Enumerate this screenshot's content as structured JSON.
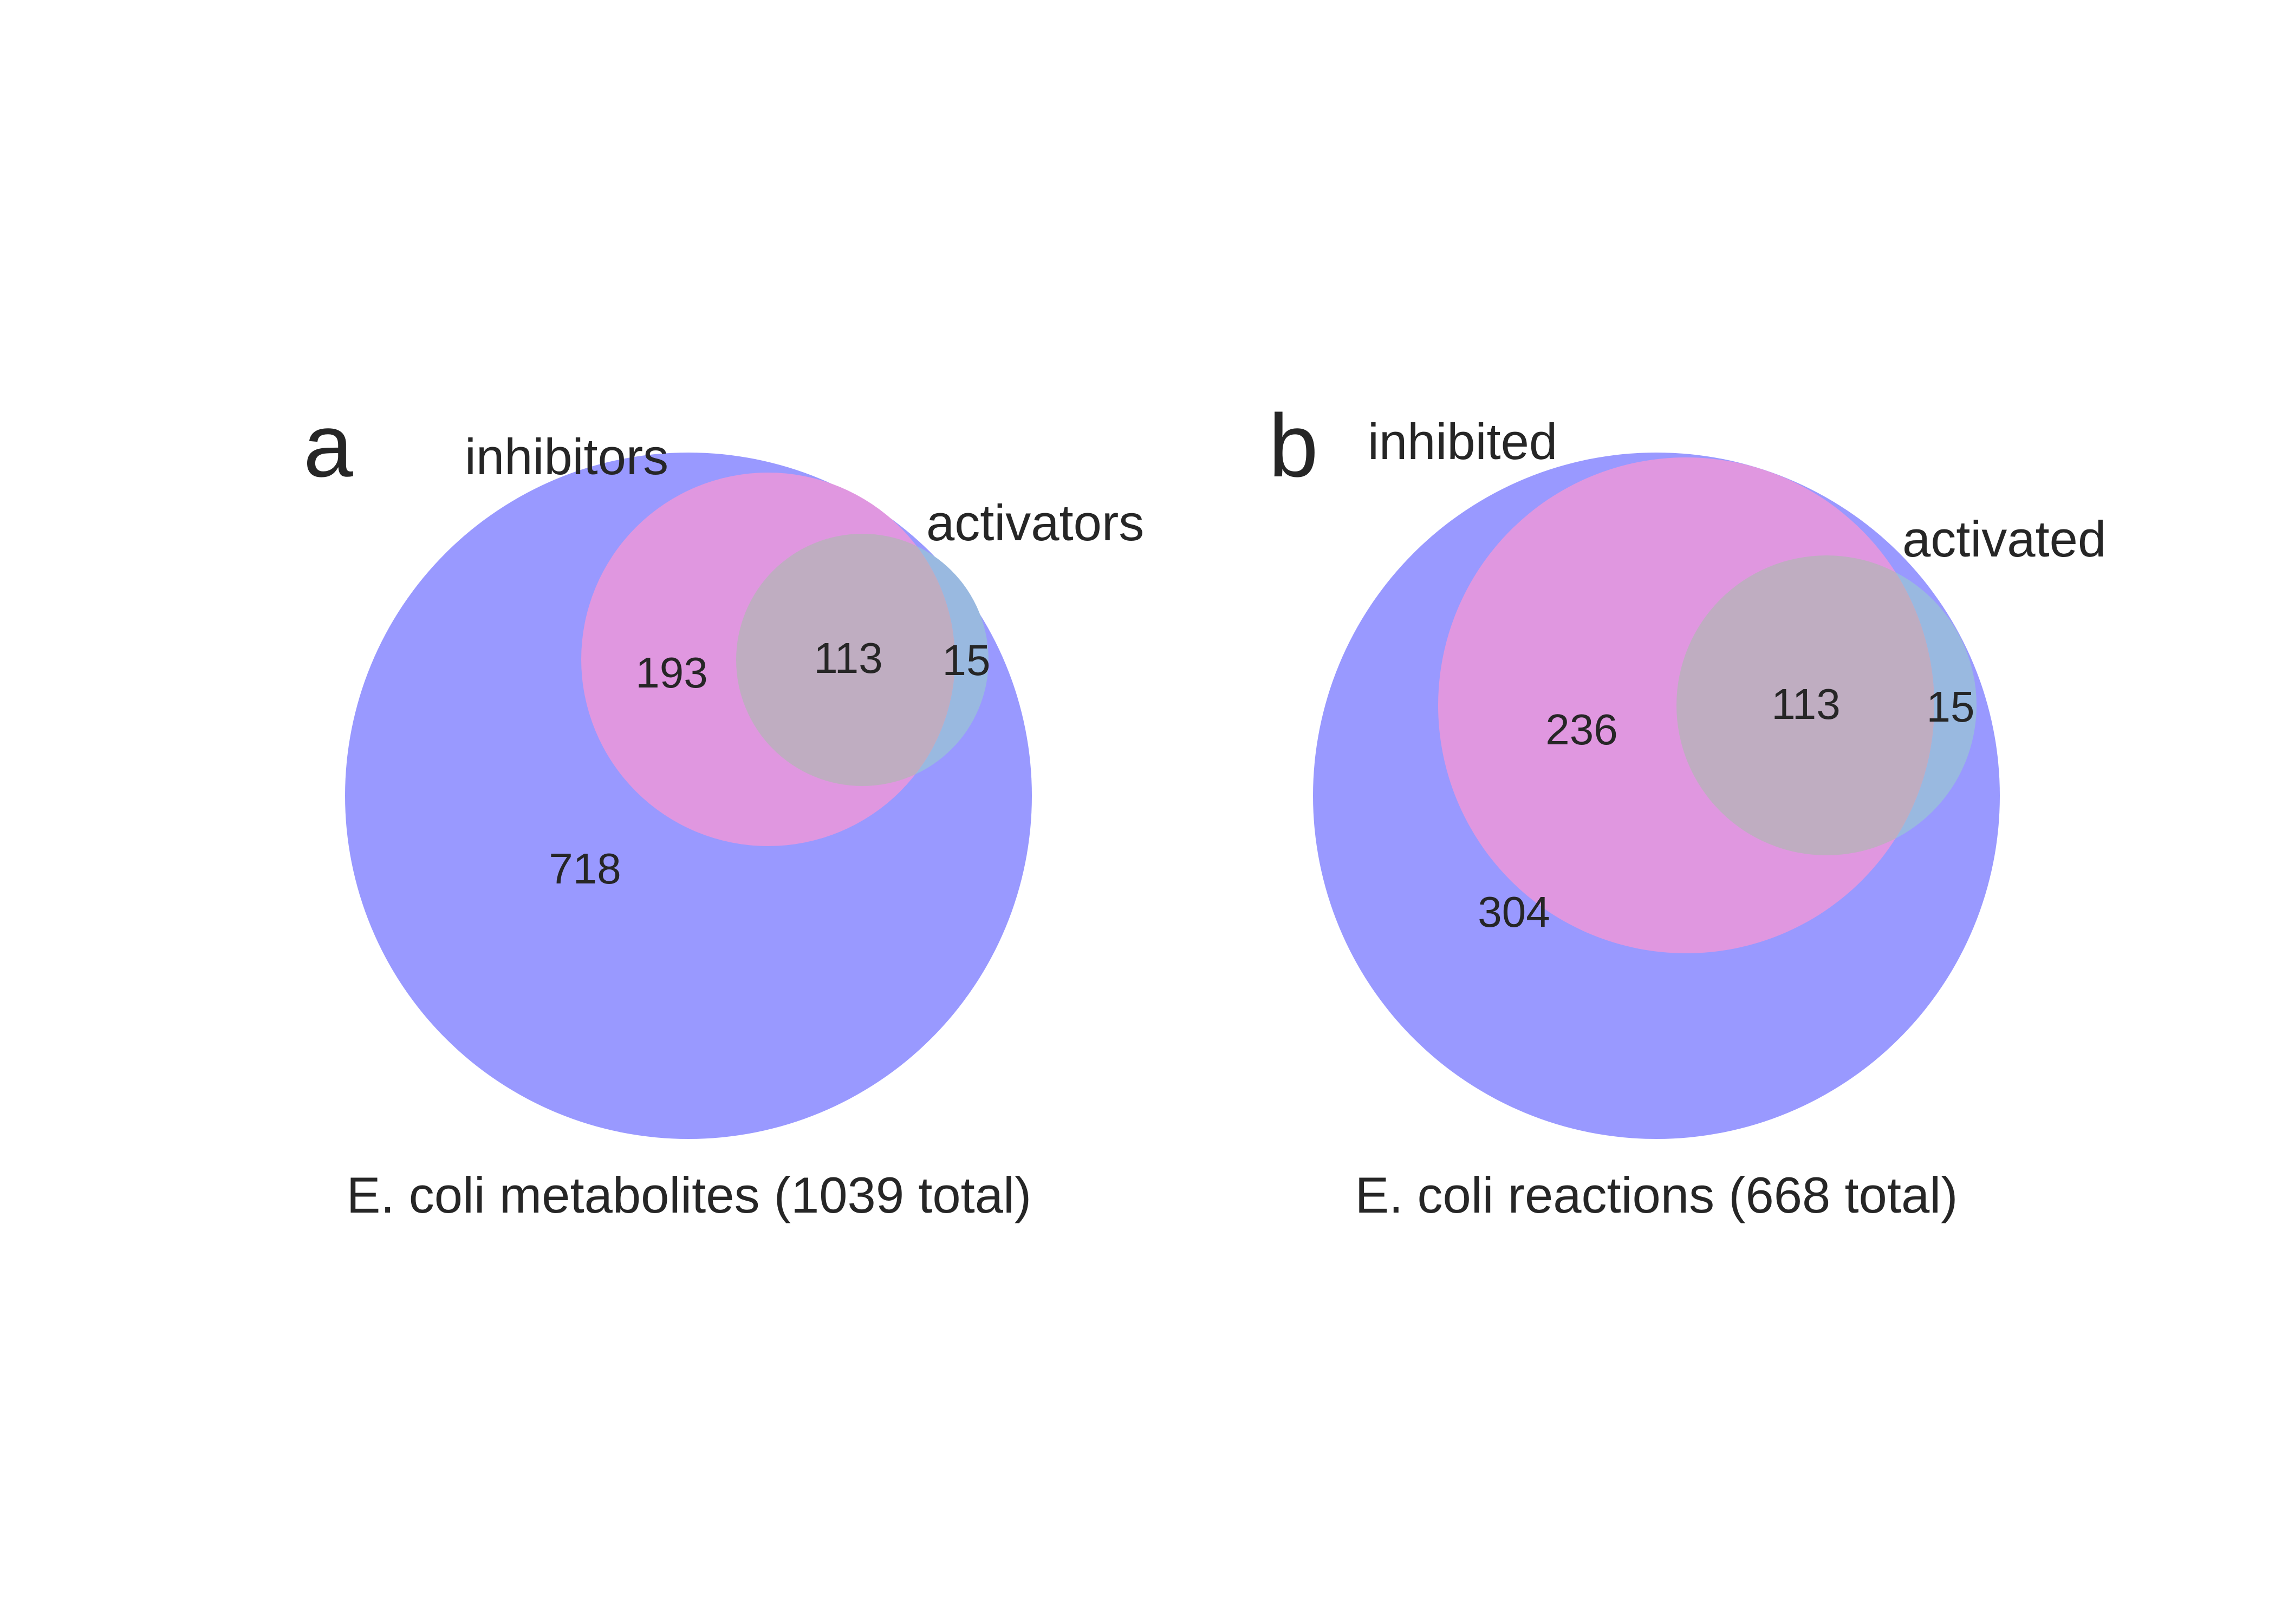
{
  "colors": {
    "outer_set": "#9999ff",
    "inhibitor_only": "#e097e0",
    "activator_only": "#99b9e0",
    "overlap": "#bfadc1",
    "text": "#262626",
    "background": "#ffffff"
  },
  "panels": [
    {
      "letter": "a",
      "label_inner_a": "inhibitors",
      "label_inner_b": "activators",
      "caption": "E. coli metabolites (1039 total)",
      "regions": {
        "outer_only": "718",
        "a_only": "193",
        "both": "113",
        "b_only": "15"
      }
    },
    {
      "letter": "b",
      "label_inner_a": "inhibited",
      "label_inner_b": "activated",
      "caption": "E. coli reactions (668 total)",
      "regions": {
        "outer_only": "304",
        "a_only": "236",
        "both": "113",
        "b_only": "15"
      }
    }
  ]
}
